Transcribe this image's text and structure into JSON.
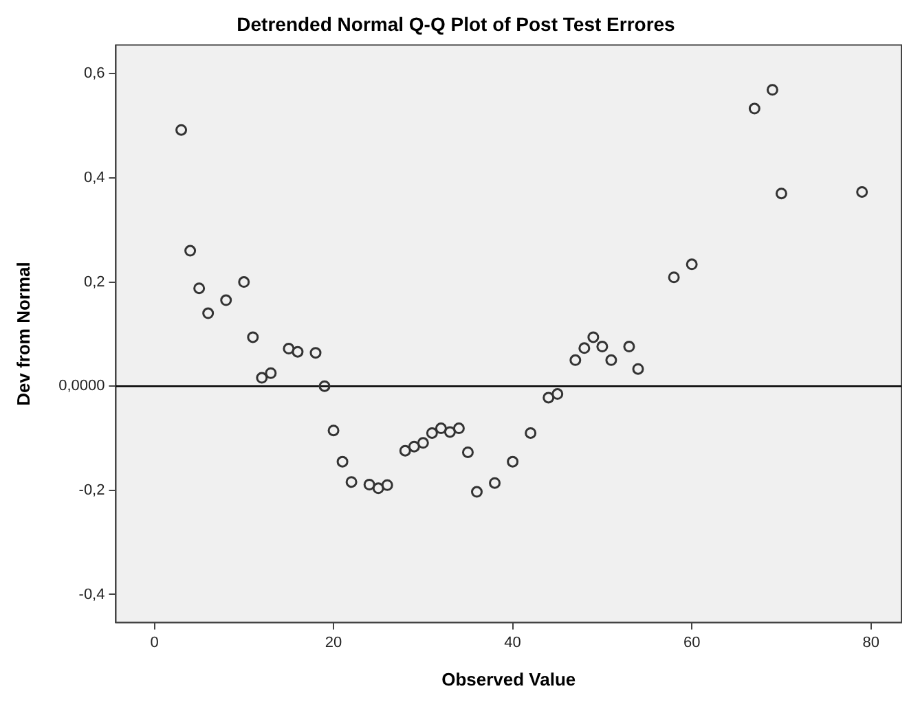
{
  "chart_data": {
    "type": "scatter",
    "title": "Detrended Normal Q-Q Plot of Post Test Errores",
    "xlabel": "Observed Value",
    "ylabel": "Dev from Normal",
    "x": [
      3,
      4,
      5,
      6,
      8,
      10,
      11,
      12,
      13,
      15,
      16,
      18,
      19,
      20,
      21,
      22,
      24,
      25,
      26,
      28,
      29,
      30,
      31,
      32,
      33,
      34,
      35,
      36,
      38,
      40,
      42,
      44,
      45,
      47,
      48,
      49,
      50,
      51,
      53,
      54,
      58,
      60,
      67,
      69,
      70,
      79
    ],
    "series": [
      {
        "color": "#333333",
        "values": [
          0.492,
          0.26,
          0.188,
          0.14,
          0.165,
          0.2,
          0.094,
          0.016,
          0.025,
          0.072,
          0.066,
          0.064,
          0,
          -0.085,
          -0.145,
          -0.184,
          -0.189,
          -0.196,
          -0.19,
          -0.124,
          -0.116,
          -0.109,
          -0.09,
          -0.081,
          -0.088,
          -0.081,
          -0.127,
          -0.203,
          -0.186,
          -0.145,
          -0.09,
          -0.022,
          -0.015,
          0.05,
          0.073,
          0.094,
          0.076,
          0.05,
          0.076,
          0.033,
          0.209,
          0.234,
          0.533,
          0.569,
          0.37,
          0.373
        ]
      }
    ],
    "xlim": [
      -4.3,
      83.4
    ],
    "xticks": [
      0,
      20,
      40,
      60,
      80
    ],
    "ylim": [
      -0.454,
      0.655
    ],
    "yticks": [
      {
        "value": -0.4,
        "label": "-0,4"
      },
      {
        "value": -0.2,
        "label": "-0,2"
      },
      {
        "value": 0,
        "label": "0,0000"
      },
      {
        "value": 0.2,
        "label": "0,2"
      },
      {
        "value": 0.4,
        "label": "0,4"
      },
      {
        "value": 0.6,
        "label": "0,6"
      }
    ],
    "ref_lines": [
      {
        "axis": "y",
        "value": 0,
        "color": "#000000"
      }
    ],
    "marker": "circle",
    "grid": false,
    "legend": false
  }
}
